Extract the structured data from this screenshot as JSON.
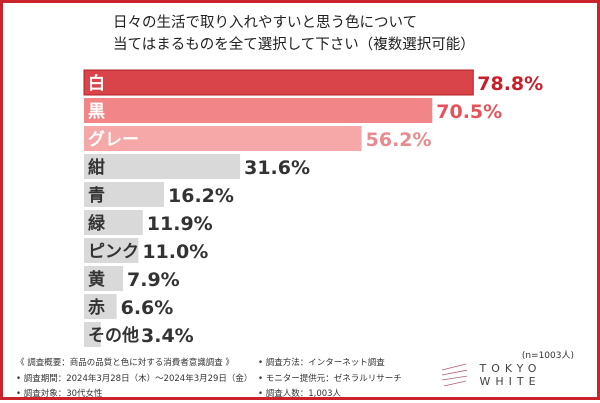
{
  "chart_data": {
    "type": "bar",
    "orientation": "horizontal",
    "title": "日々の生活で取り入れやすいと思う色について\n当てはまるものを全て選択して下さい（複数選択可能）",
    "categories": [
      "白",
      "黒",
      "グレー",
      "紺",
      "青",
      "緑",
      "ピンク",
      "黄",
      "赤",
      "その他"
    ],
    "values": [
      78.8,
      70.5,
      56.2,
      31.6,
      16.2,
      11.9,
      11.0,
      7.9,
      6.6,
      3.4
    ],
    "value_labels": [
      "78.8%",
      "70.5%",
      "56.2%",
      "31.6%",
      "16.2%",
      "11.9%",
      "11.0%",
      "7.9%",
      "6.6%",
      "3.4%"
    ],
    "unit": "%",
    "bar_colors": [
      "#d9434a",
      "#f28587",
      "#f6a8a8",
      "#d9d9d9",
      "#d9d9d9",
      "#d9d9d9",
      "#d9d9d9",
      "#d9d9d9",
      "#d9d9d9",
      "#d9d9d9"
    ],
    "label_colors": [
      "#c8202a",
      "#e5545b",
      "#e88a8e",
      "#333333",
      "#333333",
      "#333333",
      "#333333",
      "#333333",
      "#333333",
      "#333333"
    ],
    "grid": false
  },
  "sample": "(n=1003人)",
  "footer": {
    "left": [
      "《 調査概要：商品の品質と色に対する消費者意識調査 》",
      "• 調査期間：2024年3月28日（木）～2024年3月29日（金）",
      "• 調査対象：30代女性"
    ],
    "right": [
      "• 調査方法：インターネット調査",
      "• モニター提供元：ゼネラルリサーチ",
      "• 調査人数：1,003人"
    ]
  },
  "logo": "TOKYO WHITE",
  "accent": "#c9242c"
}
